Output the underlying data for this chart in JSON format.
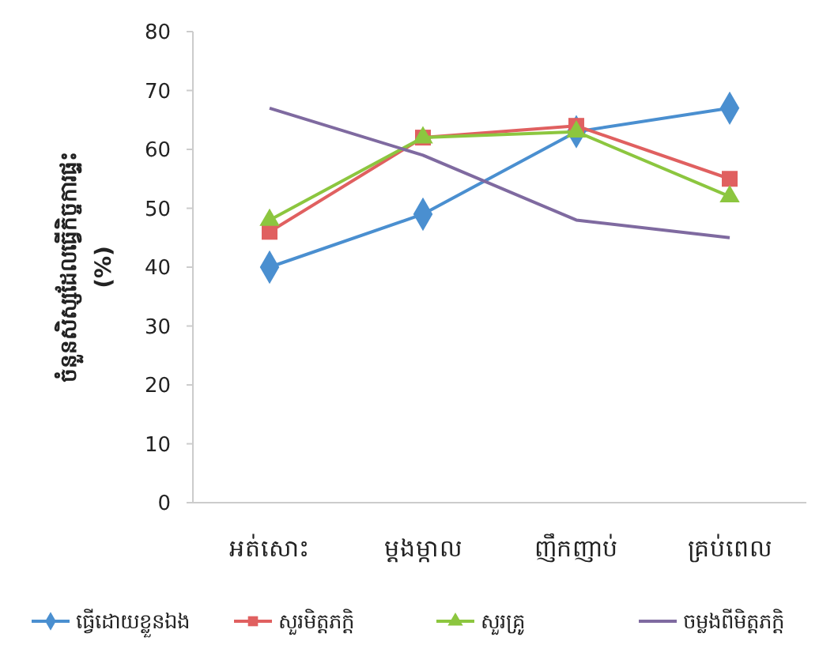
{
  "chart_data": {
    "type": "line",
    "ylabel": "ចំនួនសិស្សដែលធ្វើកិច្ចការផ្ទះ\n(%)",
    "categories": [
      "អត់សោះ",
      "ម្តងម្កាល",
      "ញឹកញាប់",
      "គ្រប់ពេល"
    ],
    "ylim": [
      0,
      80
    ],
    "yticks": [
      0,
      10,
      20,
      30,
      40,
      50,
      60,
      70,
      80
    ],
    "grid": false,
    "legend": "bottom",
    "series": [
      {
        "name": "ធ្វើដោយខ្លួនឯង",
        "color": "#4a8fd0",
        "marker": "diamond",
        "values": [
          40,
          49,
          63,
          67
        ]
      },
      {
        "name": "សួរមិត្តភក្តិ",
        "color": "#e06060",
        "marker": "square",
        "values": [
          46,
          62,
          64,
          55
        ]
      },
      {
        "name": "សួរគ្រូ",
        "color": "#8cc63f",
        "marker": "triangle",
        "values": [
          48,
          62,
          63,
          52
        ]
      },
      {
        "name": "ចម្លងពីមិត្តភក្តិ",
        "color": "#7f6aa0",
        "marker": "none",
        "values": [
          67,
          59,
          48,
          45
        ]
      }
    ]
  }
}
